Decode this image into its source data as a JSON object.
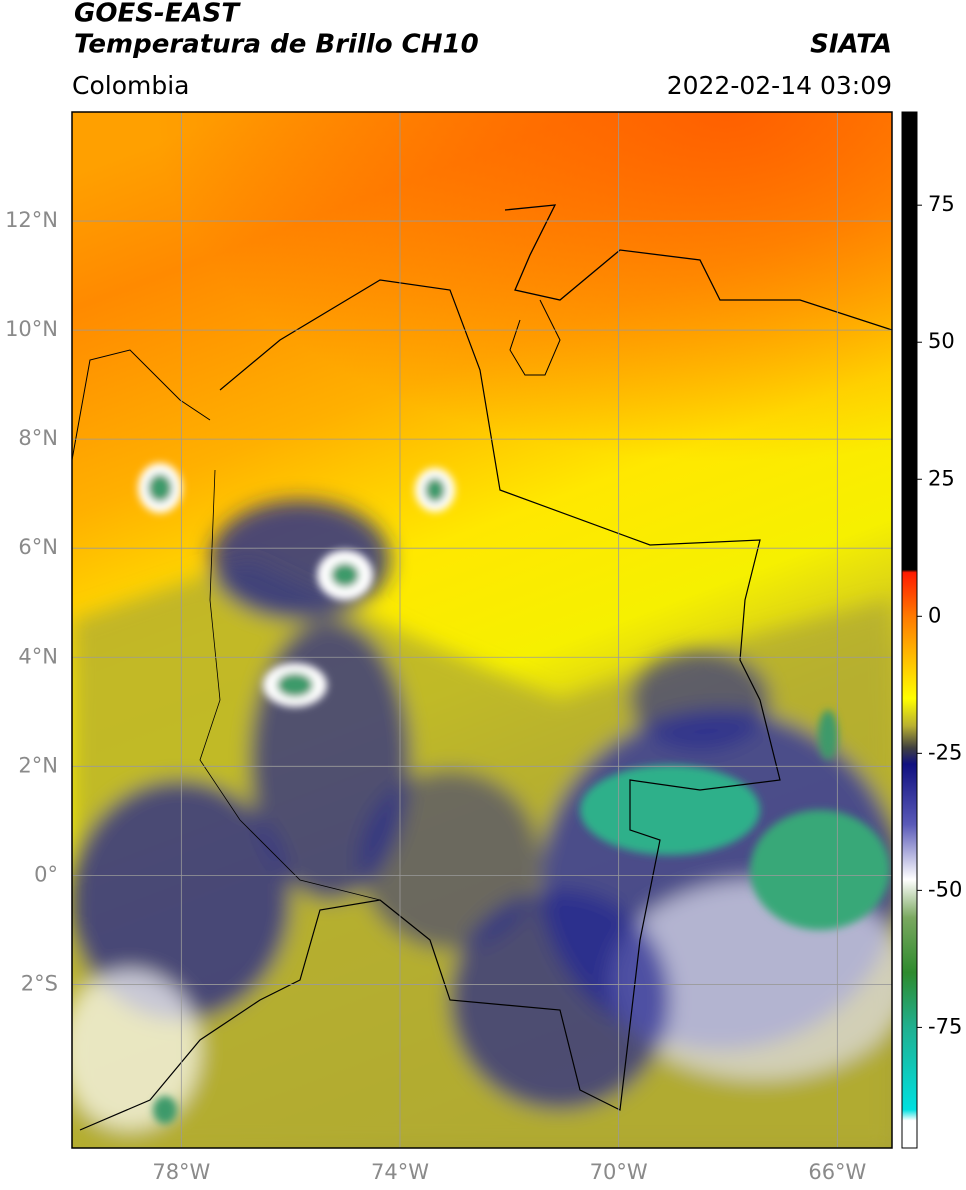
{
  "map": {
    "title": "GOES-EAST",
    "subtitle": "Temperatura de Brillo CH10",
    "source": "SIATA",
    "region": "Colombia",
    "timestamp": "2022-02-14 03:09",
    "xlim": [
      -80,
      -65
    ],
    "ylim": [
      -5,
      14
    ],
    "xticks": [
      {
        "value": -78,
        "label": "78°W"
      },
      {
        "value": -74,
        "label": "74°W"
      },
      {
        "value": -70,
        "label": "70°W"
      },
      {
        "value": -66,
        "label": "66°W"
      }
    ],
    "yticks": [
      {
        "value": 12,
        "label": "12°N"
      },
      {
        "value": 10,
        "label": "10°N"
      },
      {
        "value": 8,
        "label": "8°N"
      },
      {
        "value": 6,
        "label": "6°N"
      },
      {
        "value": 4,
        "label": "4°N"
      },
      {
        "value": 2,
        "label": "2°N"
      },
      {
        "value": 0,
        "label": "0°"
      },
      {
        "value": -2,
        "label": "2°S"
      }
    ],
    "grid": true,
    "grid_color": "#9a9a9a",
    "colorbar": {
      "lim": [
        -97,
        92
      ],
      "ticks": [
        75,
        50,
        25,
        0,
        -25,
        -50,
        -75
      ],
      "stops": [
        {
          "value": 92,
          "color": "#000000"
        },
        {
          "value": 8.5,
          "color": "#000000"
        },
        {
          "value": 8,
          "color": "#ff1a00"
        },
        {
          "value": 0,
          "color": "#ff7a00"
        },
        {
          "value": -15,
          "color": "#ffff00"
        },
        {
          "value": -20,
          "color": "#b8b030"
        },
        {
          "value": -24,
          "color": "#404040"
        },
        {
          "value": -27,
          "color": "#101080"
        },
        {
          "value": -38,
          "color": "#5a5ab8"
        },
        {
          "value": -48,
          "color": "#ffffff"
        },
        {
          "value": -55,
          "color": "#7aa860"
        },
        {
          "value": -65,
          "color": "#2e8b2e"
        },
        {
          "value": -75,
          "color": "#20b090"
        },
        {
          "value": -90,
          "color": "#00e0e0"
        },
        {
          "value": -92,
          "color": "#ffffff"
        },
        {
          "value": -97,
          "color": "#ffffff"
        }
      ]
    }
  }
}
